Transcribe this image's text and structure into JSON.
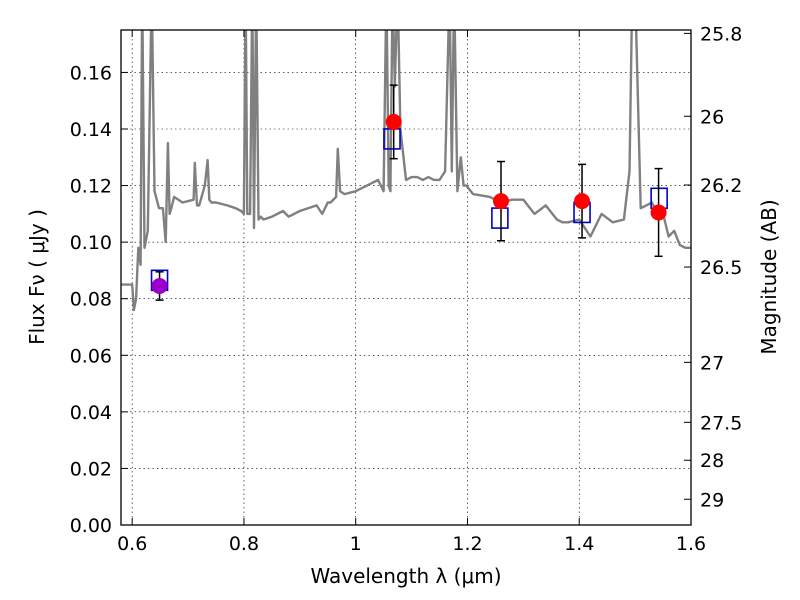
{
  "chart_data": {
    "type": "scatter",
    "title": "",
    "xlabel": "Wavelength  λ (μm)",
    "ylabel": "Flux  Fν  ( μJy )",
    "y2label": "Magnitude (AB)",
    "xlim": [
      0.58,
      1.6
    ],
    "ylim": [
      0.0,
      0.175
    ],
    "grid": true,
    "x_ticks": [
      0.6,
      0.8,
      1.0,
      1.2,
      1.4,
      1.6
    ],
    "x_tick_labels": [
      "0.6",
      "0.8",
      "1",
      "1.2",
      "1.4",
      "1.6"
    ],
    "y_ticks": [
      0.0,
      0.02,
      0.04,
      0.06,
      0.08,
      0.1,
      0.12,
      0.14,
      0.16
    ],
    "y_tick_labels": [
      "0.00",
      "0.02",
      "0.04",
      "0.06",
      "0.08",
      "0.10",
      "0.12",
      "0.14",
      "0.16"
    ],
    "y2_ticks": [
      {
        "label": "25.8",
        "flux": 0.1738
      },
      {
        "label": "26",
        "flux": 0.1445
      },
      {
        "label": "26.2",
        "flux": 0.1202
      },
      {
        "label": "26.5",
        "flux": 0.0912
      },
      {
        "label": "27",
        "flux": 0.0575
      },
      {
        "label": "27.5",
        "flux": 0.0363
      },
      {
        "label": "28",
        "flux": 0.0229
      },
      {
        "label": "29",
        "flux": 0.0091
      }
    ],
    "series": [
      {
        "kind": "line",
        "color": "#808080",
        "x": [
          0.58,
          0.6,
          0.603,
          0.607,
          0.611,
          0.615,
          0.618,
          0.622,
          0.628,
          0.635,
          0.64,
          0.648,
          0.655,
          0.66,
          0.664,
          0.667,
          0.67,
          0.675,
          0.69,
          0.71,
          0.712,
          0.716,
          0.72,
          0.73,
          0.735,
          0.738,
          0.742,
          0.75,
          0.77,
          0.785,
          0.795,
          0.8,
          0.803,
          0.806,
          0.811,
          0.815,
          0.818,
          0.822,
          0.826,
          0.83,
          0.835,
          0.85,
          0.87,
          0.88,
          0.9,
          0.93,
          0.94,
          0.95,
          0.955,
          0.965,
          0.968,
          0.972,
          0.98,
          1.0,
          1.02,
          1.04,
          1.05,
          1.055,
          1.059,
          1.062,
          1.066,
          1.07,
          1.075,
          1.08,
          1.09,
          1.1,
          1.11,
          1.12,
          1.13,
          1.14,
          1.15,
          1.16,
          1.168,
          1.172,
          1.176,
          1.182,
          1.188,
          1.193,
          1.198,
          1.21,
          1.24,
          1.26,
          1.28,
          1.3,
          1.32,
          1.34,
          1.36,
          1.37,
          1.38,
          1.4,
          1.42,
          1.44,
          1.46,
          1.48,
          1.49,
          1.495,
          1.5,
          1.51,
          1.52,
          1.53,
          1.54,
          1.55,
          1.56,
          1.57,
          1.58,
          1.59,
          1.6
        ],
        "y": [
          0.085,
          0.085,
          0.076,
          0.08,
          0.098,
          0.092,
          0.19,
          0.098,
          0.104,
          0.19,
          0.118,
          0.112,
          0.112,
          0.1,
          0.135,
          0.11,
          0.112,
          0.116,
          0.114,
          0.115,
          0.128,
          0.113,
          0.113,
          0.12,
          0.129,
          0.115,
          0.114,
          0.114,
          0.113,
          0.112,
          0.111,
          0.11,
          0.19,
          0.11,
          0.11,
          0.19,
          0.105,
          0.19,
          0.108,
          0.109,
          0.108,
          0.109,
          0.111,
          0.109,
          0.111,
          0.113,
          0.11,
          0.114,
          0.114,
          0.116,
          0.133,
          0.118,
          0.117,
          0.118,
          0.12,
          0.122,
          0.118,
          0.19,
          0.12,
          0.118,
          0.19,
          0.155,
          0.19,
          0.14,
          0.122,
          0.123,
          0.123,
          0.122,
          0.123,
          0.122,
          0.122,
          0.125,
          0.19,
          0.125,
          0.19,
          0.118,
          0.13,
          0.12,
          0.12,
          0.117,
          0.116,
          0.114,
          0.115,
          0.115,
          0.11,
          0.113,
          0.108,
          0.107,
          0.107,
          0.108,
          0.102,
          0.11,
          0.107,
          0.108,
          0.125,
          0.19,
          0.19,
          0.112,
          0.113,
          0.114,
          0.11,
          0.11,
          0.102,
          0.104,
          0.099,
          0.098,
          0.098
        ]
      },
      {
        "kind": "model-boxes",
        "color": "#0000cc",
        "x": [
          0.649,
          1.065,
          1.258,
          1.405,
          1.543
        ],
        "y": [
          0.0865,
          0.1365,
          0.1085,
          0.1105,
          0.1155
        ]
      },
      {
        "kind": "points",
        "color": "#ff0000",
        "x": [
          0.649,
          1.068,
          1.26,
          1.405,
          1.542
        ],
        "y": [
          0.0845,
          0.1425,
          0.1145,
          0.1145,
          0.1105
        ],
        "err": [
          0.005,
          0.013,
          0.014,
          0.013,
          0.0155
        ],
        "point_colors": [
          "#9900cc",
          "#ff0000",
          "#ff0000",
          "#ff0000",
          "#ff0000"
        ]
      }
    ]
  }
}
